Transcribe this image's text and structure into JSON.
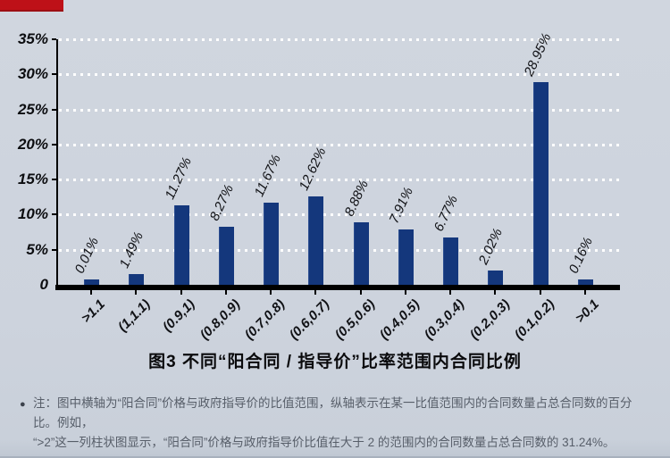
{
  "page": {
    "red_marker_color": "#be1118",
    "background_color": "#cdd3dd"
  },
  "chart_data": {
    "type": "bar",
    "title": "图3 不同“阳合同 / 指导价”比率范围内合同比例",
    "categories": [
      ">1.1",
      "(1,1.1)",
      "(0.9,1)",
      "(0.8,0.9)",
      "(0.7,0.8)",
      "(0.6,0.7)",
      "(0.5,0.6)",
      "(0.4,0.5)",
      "(0.3,0.4)",
      "(0.2,0.3)",
      "(0.1,0.2)",
      ">0.1"
    ],
    "values": [
      0.01,
      1.49,
      11.27,
      8.27,
      11.67,
      12.62,
      8.88,
      7.91,
      6.77,
      2.02,
      28.95,
      0.16
    ],
    "value_labels": [
      "0.01%",
      "1.49%",
      "11.27%",
      "8.27%",
      "11.67%",
      "12.62%",
      "8.88%",
      "7.91%",
      "6.77%",
      "2.02%",
      "28.95%",
      "0.16%"
    ],
    "y_ticks": [
      "35%",
      "30%",
      "25%",
      "20%",
      "15%",
      "10%",
      "5%",
      "0"
    ],
    "y_tick_values": [
      35,
      30,
      25,
      20,
      15,
      10,
      5,
      0
    ],
    "ylim": [
      0,
      35
    ],
    "xlabel": "",
    "ylabel": "",
    "grid": "horizontal dotted white",
    "legend": "none",
    "bar_color": "#14377c"
  },
  "note": {
    "bullet": "●",
    "lines": [
      "注：图中横轴为“阳合同”价格与政府指导价的比值范围，纵轴表示在某一比值范围内的合同数量占总合同数的百分比。例如，",
      "“>2”这一列柱状图显示，“阳合同”价格与政府指导价比值在大于 2 的范围内的合同数量占总合同数的 31.24%。"
    ]
  }
}
